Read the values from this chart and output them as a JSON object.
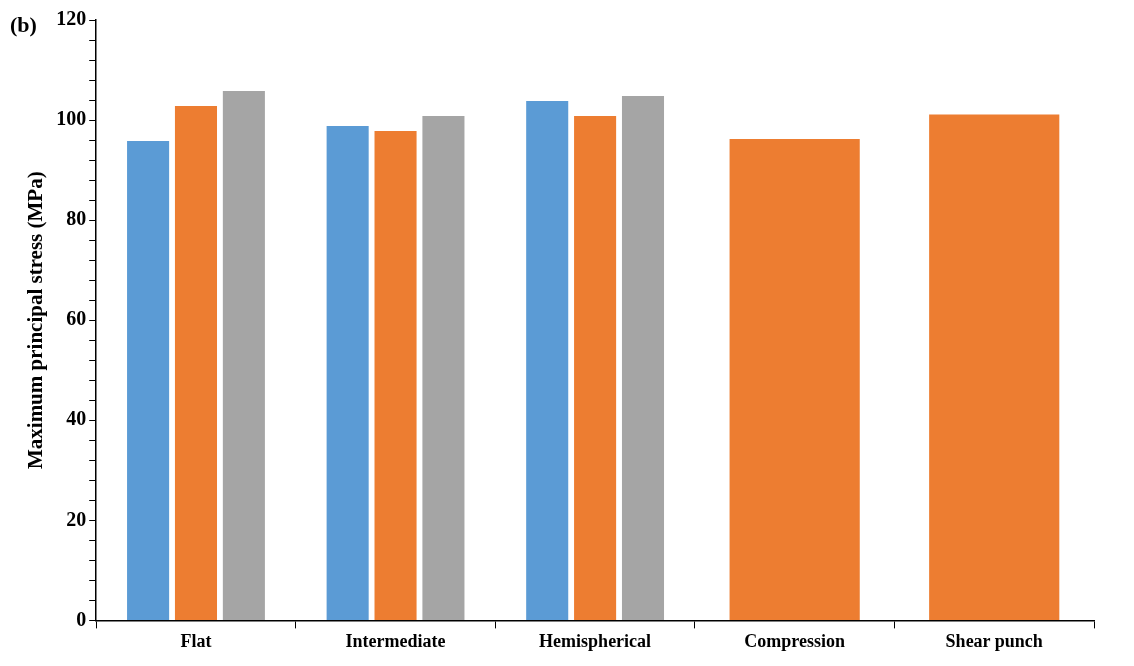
{
  "chart_data": {
    "type": "bar",
    "ylabel": "Maximum principal stress (MPa)",
    "annotations": [
      "(b)"
    ],
    "categories": [
      "Flat",
      "Intermediate",
      "Hemispherical",
      "Compression",
      "Shear punch"
    ],
    "series": [
      {
        "color": "#5b9bd5",
        "values": [
          96,
          99,
          104,
          null,
          null
        ]
      },
      {
        "color": "#ed7d31",
        "values": [
          103,
          98,
          101,
          96.4,
          101.3
        ]
      },
      {
        "color": "#a5a5a5",
        "values": [
          106,
          101,
          105,
          null,
          null
        ]
      }
    ],
    "ylim": [
      0,
      120
    ],
    "yticks": [
      0,
      {
        "value": 4,
        "label": null
      },
      {
        "value": 8,
        "label": null
      },
      {
        "value": 12,
        "label": null
      },
      {
        "value": 16,
        "label": null
      },
      20,
      {
        "value": 24,
        "label": null
      },
      {
        "value": 28,
        "label": null
      },
      {
        "value": 32,
        "label": null
      },
      {
        "value": 36,
        "label": null
      },
      40,
      {
        "value": 44,
        "label": null
      },
      {
        "value": 48,
        "label": null
      },
      {
        "value": 52,
        "label": null
      },
      {
        "value": 56,
        "label": null
      },
      60,
      {
        "value": 64,
        "label": null
      },
      {
        "value": 68,
        "label": null
      },
      {
        "value": 72,
        "label": null
      },
      {
        "value": 76,
        "label": null
      },
      80,
      {
        "value": 84,
        "label": null
      },
      {
        "value": 88,
        "label": null
      },
      {
        "value": 92,
        "label": null
      },
      {
        "value": 96,
        "label": null
      },
      100,
      {
        "value": 104,
        "label": null
      },
      {
        "value": 108,
        "label": null
      },
      {
        "value": 112,
        "label": null
      },
      {
        "value": 116,
        "label": null
      },
      120
    ],
    "grid": false,
    "legend": false
  }
}
